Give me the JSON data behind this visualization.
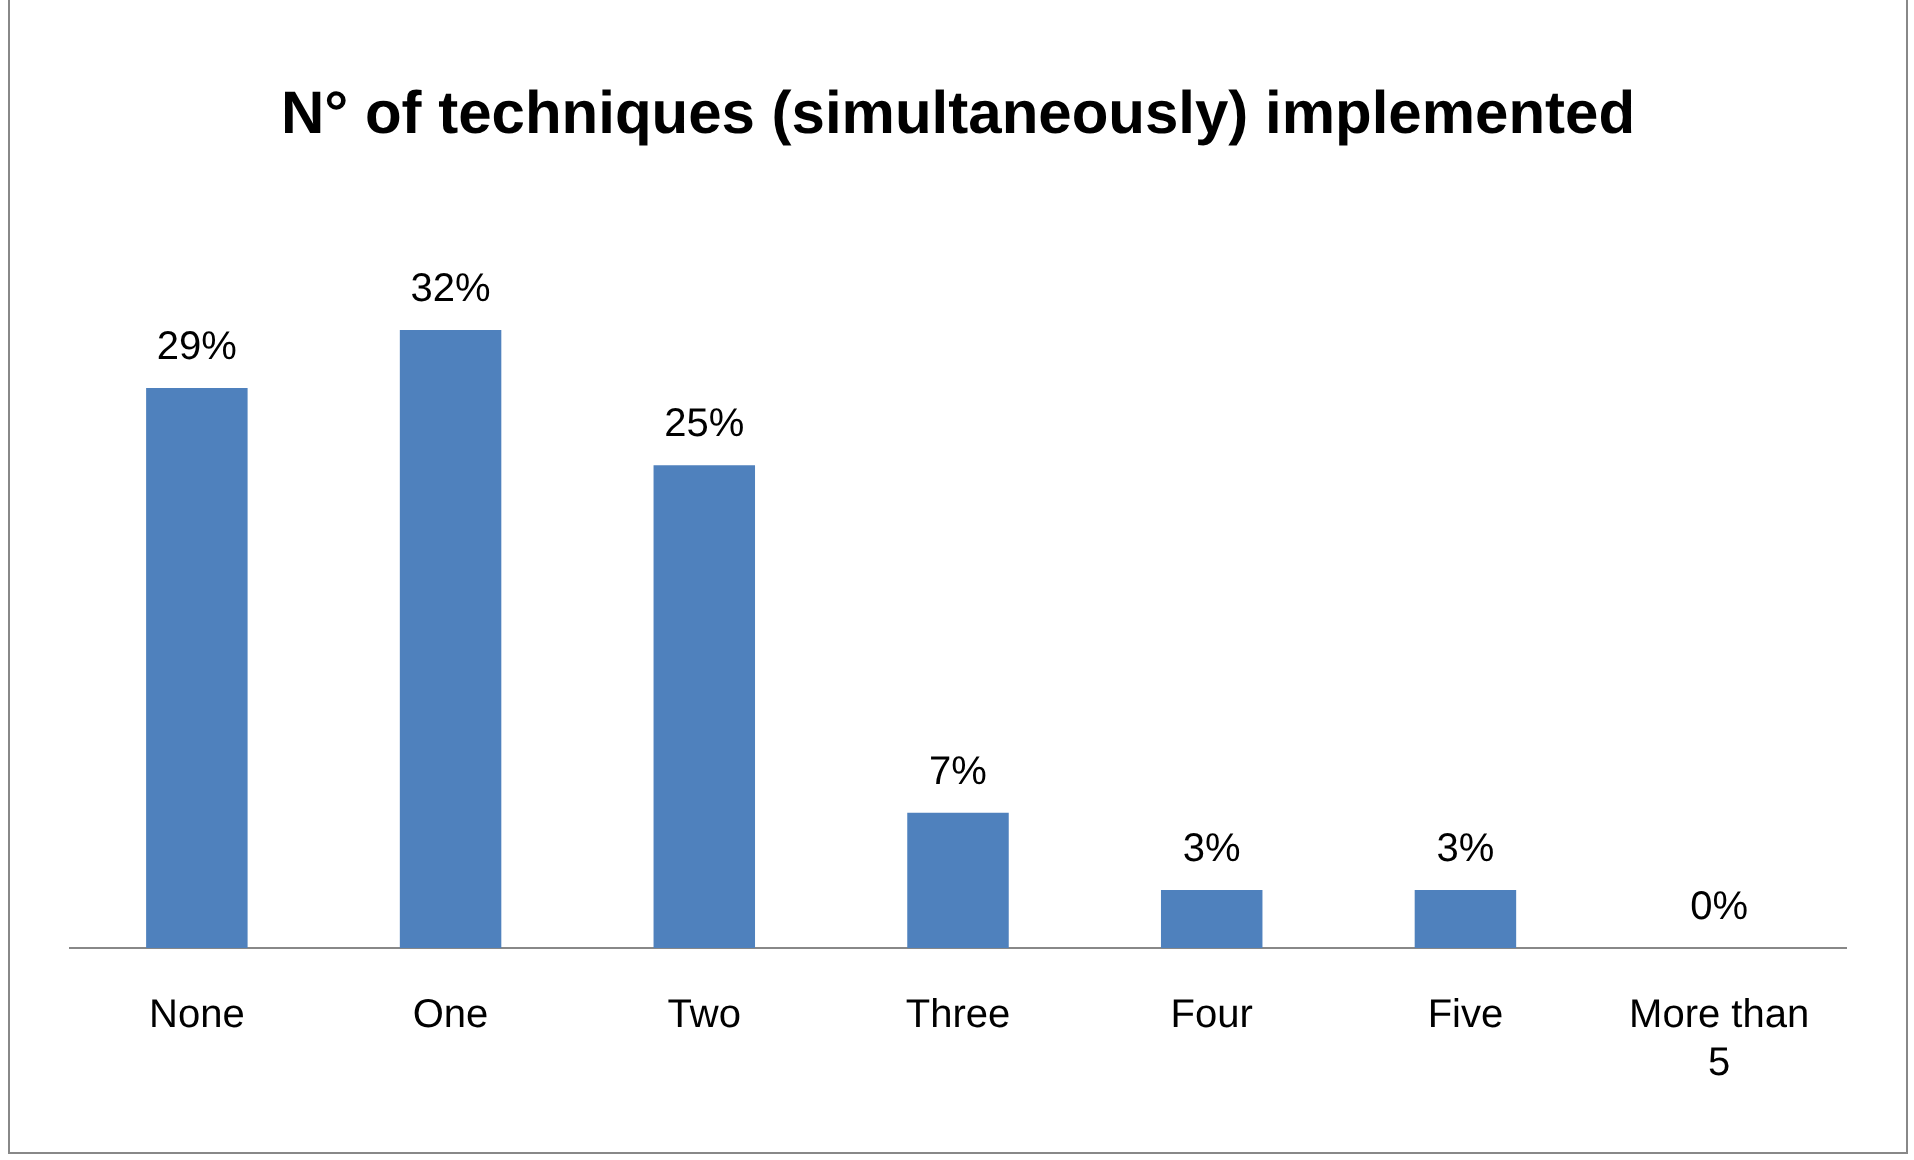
{
  "chart_data": {
    "type": "bar",
    "title": "N° of techniques (simultaneously) implemented",
    "categories": [
      "None",
      "One",
      "Two",
      "Three",
      "Four",
      "Five",
      "More than 5"
    ],
    "values": [
      29,
      32,
      25,
      7,
      3,
      3,
      0
    ],
    "value_labels": [
      "29%",
      "32%",
      "25%",
      "7%",
      "3%",
      "3%",
      "0%"
    ],
    "color": "#4f81bd",
    "grid": false,
    "legend": false
  }
}
